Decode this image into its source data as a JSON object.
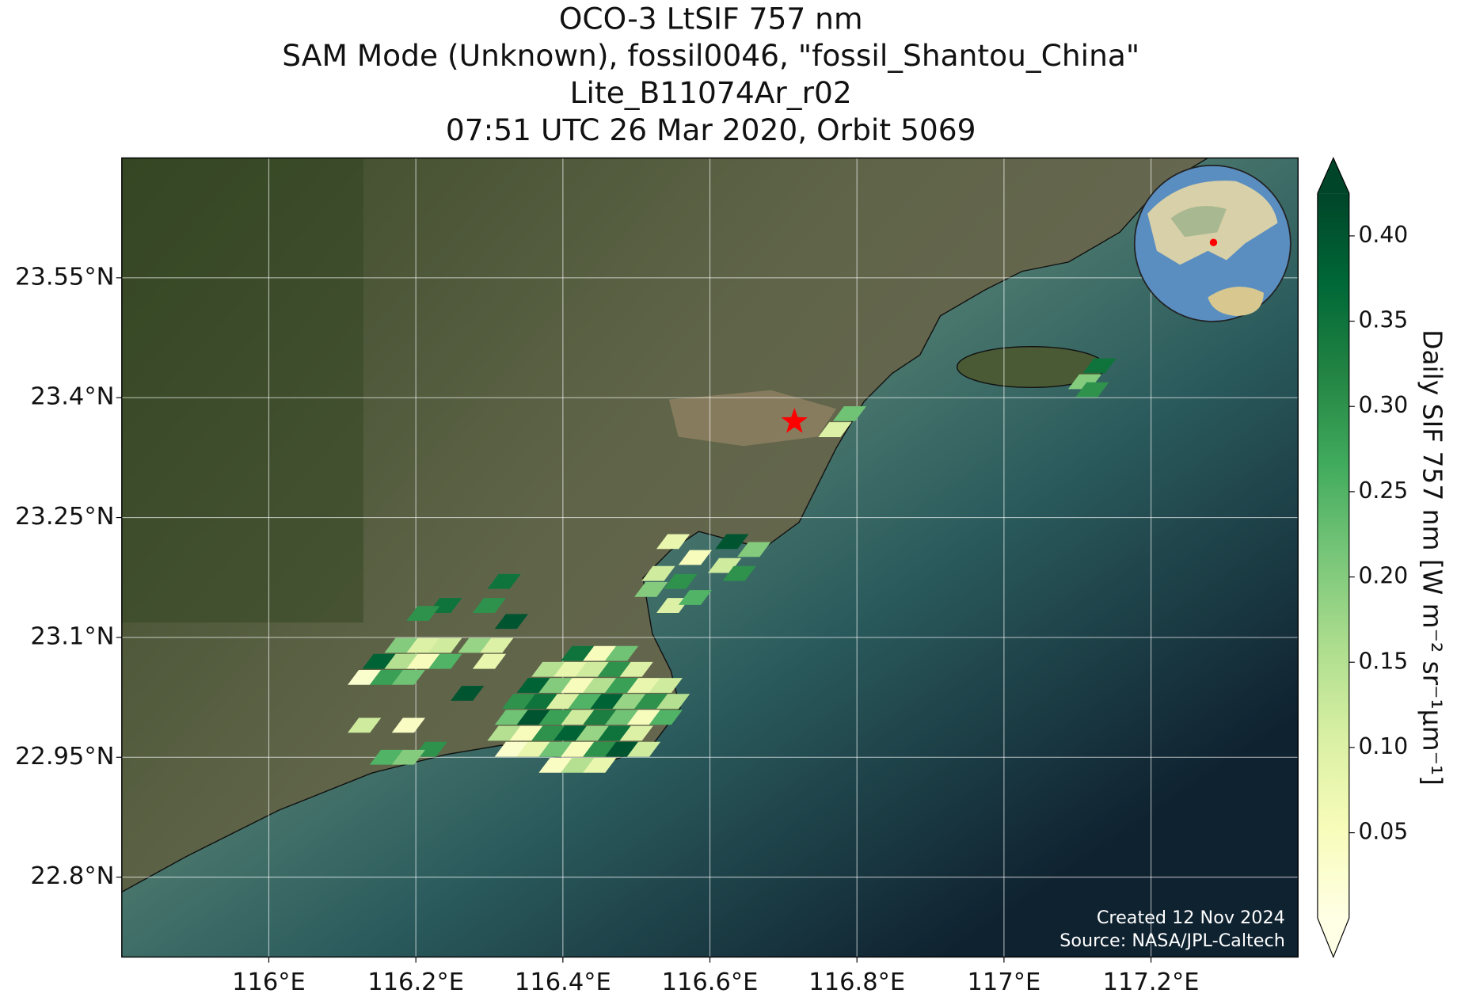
{
  "chart_data": {
    "type": "map",
    "title": [
      "OCO-3 LtSIF 757 nm",
      "SAM Mode (Unknown), fossil0046, \"fossil_Shantou_China\"",
      "Lite_B11074Ar_r02",
      "07:51 UTC 26 Mar 2020, Orbit 5069"
    ],
    "xlim": [
      115.8,
      117.4
    ],
    "ylim": [
      22.7,
      23.7
    ],
    "xticks": [
      {
        "value": 116,
        "label": "116°E"
      },
      {
        "value": 116.2,
        "label": "116.2°E"
      },
      {
        "value": 116.4,
        "label": "116.4°E"
      },
      {
        "value": 116.6,
        "label": "116.6°E"
      },
      {
        "value": 116.8,
        "label": "116.8°E"
      },
      {
        "value": 117,
        "label": "117°E"
      },
      {
        "value": 117.2,
        "label": "117.2°E"
      }
    ],
    "yticks": [
      {
        "value": 22.8,
        "label": "22.8°N"
      },
      {
        "value": 22.95,
        "label": "22.95°N"
      },
      {
        "value": 23.1,
        "label": "23.1°N"
      },
      {
        "value": 23.25,
        "label": "23.25°N"
      },
      {
        "value": 23.4,
        "label": "23.4°N"
      },
      {
        "value": 23.55,
        "label": "23.55°N"
      }
    ],
    "grid": true,
    "colorbar": {
      "label": "Daily SIF 757 nm [W m⁻² sr⁻¹μm⁻¹]",
      "lim": [
        0,
        0.425
      ],
      "ticks": [
        {
          "value": 0.05,
          "label": "0.05"
        },
        {
          "value": 0.1,
          "label": "0.10"
        },
        {
          "value": 0.15,
          "label": "0.15"
        },
        {
          "value": 0.2,
          "label": "0.20"
        },
        {
          "value": 0.25,
          "label": "0.25"
        },
        {
          "value": 0.3,
          "label": "0.30"
        },
        {
          "value": 0.35,
          "label": "0.35"
        },
        {
          "value": 0.4,
          "label": "0.40"
        }
      ],
      "colormap": [
        "#ffffe5",
        "#f7fcb9",
        "#d9f0a3",
        "#addd8e",
        "#78c679",
        "#41ab5d",
        "#238443",
        "#006837",
        "#004529"
      ]
    },
    "target": {
      "lon": 116.715,
      "lat": 23.37,
      "color": "#ff0000"
    },
    "credits": [
      "Created 12 Nov 2024",
      "Source: NASA/JPL-Caltech"
    ],
    "footprints": {
      "lon": [
        116.42,
        116.45,
        116.48,
        116.38,
        116.41,
        116.44,
        116.47,
        116.5,
        116.36,
        116.39,
        116.42,
        116.45,
        116.48,
        116.51,
        116.54,
        116.34,
        116.37,
        116.4,
        116.43,
        116.46,
        116.49,
        116.52,
        116.55,
        116.33,
        116.36,
        116.39,
        116.42,
        116.45,
        116.48,
        116.51,
        116.54,
        116.32,
        116.35,
        116.38,
        116.41,
        116.44,
        116.47,
        116.5,
        116.33,
        116.36,
        116.39,
        116.42,
        116.45,
        116.48,
        116.51,
        116.39,
        116.42,
        116.45,
        116.24,
        116.21,
        116.18,
        116.21,
        116.24,
        116.15,
        116.18,
        116.21,
        116.24,
        116.13,
        116.16,
        116.19,
        116.27,
        116.13,
        116.19,
        116.22,
        116.16,
        116.19,
        116.32,
        116.3,
        116.33,
        116.28,
        116.31,
        116.3,
        116.55,
        116.58,
        116.53,
        116.56,
        116.52,
        116.55,
        116.58,
        116.63,
        116.66,
        116.62,
        116.64,
        116.79,
        116.77,
        117.11,
        117.13,
        117.12
      ],
      "lat": [
        23.08,
        23.08,
        23.08,
        23.06,
        23.06,
        23.06,
        23.06,
        23.06,
        23.04,
        23.04,
        23.04,
        23.04,
        23.04,
        23.04,
        23.04,
        23.02,
        23.02,
        23.02,
        23.02,
        23.02,
        23.02,
        23.02,
        23.02,
        23.0,
        23.0,
        23.0,
        23.0,
        23.0,
        23.0,
        23.0,
        23.0,
        22.98,
        22.98,
        22.98,
        22.98,
        22.98,
        22.98,
        22.98,
        22.96,
        22.96,
        22.96,
        22.96,
        22.96,
        22.96,
        22.96,
        22.94,
        22.94,
        22.94,
        23.14,
        23.13,
        23.09,
        23.09,
        23.09,
        23.07,
        23.07,
        23.07,
        23.07,
        23.05,
        23.05,
        23.05,
        23.03,
        22.99,
        22.99,
        22.96,
        22.95,
        22.95,
        23.17,
        23.14,
        23.12,
        23.09,
        23.09,
        23.07,
        23.22,
        23.2,
        23.18,
        23.17,
        23.16,
        23.14,
        23.15,
        23.22,
        23.21,
        23.19,
        23.18,
        23.38,
        23.36,
        23.42,
        23.44,
        23.41
      ],
      "sif": [
        0.35,
        0.05,
        0.22,
        0.15,
        0.08,
        0.12,
        0.3,
        0.1,
        0.38,
        0.2,
        0.05,
        0.15,
        0.28,
        0.08,
        0.12,
        0.3,
        0.35,
        0.1,
        0.25,
        0.38,
        0.18,
        0.3,
        0.15,
        0.22,
        0.4,
        0.28,
        0.12,
        0.33,
        0.22,
        0.05,
        0.25,
        0.15,
        0.05,
        0.3,
        0.38,
        0.18,
        0.35,
        0.1,
        0.03,
        0.08,
        0.22,
        0.05,
        0.3,
        0.4,
        0.12,
        0.04,
        0.15,
        0.08,
        0.35,
        0.3,
        0.2,
        0.1,
        0.12,
        0.38,
        0.15,
        0.05,
        0.25,
        0.03,
        0.28,
        0.22,
        0.4,
        0.12,
        0.04,
        0.3,
        0.25,
        0.2,
        0.35,
        0.3,
        0.4,
        0.18,
        0.1,
        0.08,
        0.08,
        0.05,
        0.12,
        0.3,
        0.2,
        0.1,
        0.25,
        0.4,
        0.2,
        0.12,
        0.3,
        0.22,
        0.1,
        0.2,
        0.35,
        0.3
      ]
    }
  }
}
